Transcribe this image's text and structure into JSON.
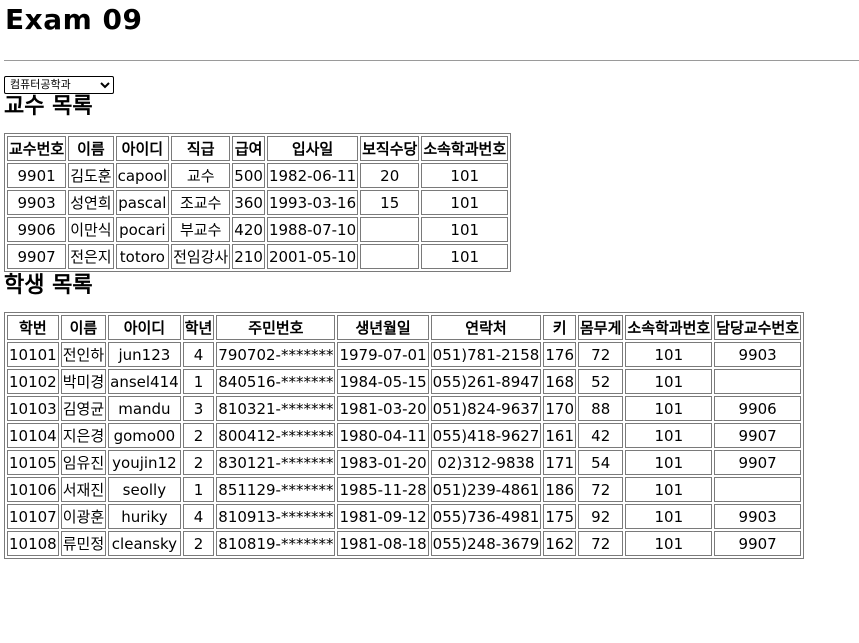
{
  "page": {
    "title": "Exam 09"
  },
  "department_select": {
    "selected": "컴퓨터공학과",
    "options": [
      "컴퓨터공학과"
    ]
  },
  "professors": {
    "title": "교수 목록",
    "headers": [
      "교수번호",
      "이름",
      "아이디",
      "직급",
      "급여",
      "입사일",
      "보직수당",
      "소속학과번호"
    ],
    "rows": [
      [
        "9901",
        "김도훈",
        "capool",
        "교수",
        "500",
        "1982-06-11",
        "20",
        "101"
      ],
      [
        "9903",
        "성연희",
        "pascal",
        "조교수",
        "360",
        "1993-03-16",
        "15",
        "101"
      ],
      [
        "9906",
        "이만식",
        "pocari",
        "부교수",
        "420",
        "1988-07-10",
        "",
        "101"
      ],
      [
        "9907",
        "전은지",
        "totoro",
        "전임강사",
        "210",
        "2001-05-10",
        "",
        "101"
      ]
    ]
  },
  "students": {
    "title": "학생 목록",
    "headers": [
      "학번",
      "이름",
      "아이디",
      "학년",
      "주민번호",
      "생년월일",
      "연락처",
      "키",
      "몸무게",
      "소속학과번호",
      "담당교수번호"
    ],
    "rows": [
      [
        "10101",
        "전인하",
        "jun123",
        "4",
        "790702-*******",
        "1979-07-01",
        "051)781-2158",
        "176",
        "72",
        "101",
        "9903"
      ],
      [
        "10102",
        "박미경",
        "ansel414",
        "1",
        "840516-*******",
        "1984-05-15",
        "055)261-8947",
        "168",
        "52",
        "101",
        ""
      ],
      [
        "10103",
        "김영균",
        "mandu",
        "3",
        "810321-*******",
        "1981-03-20",
        "051)824-9637",
        "170",
        "88",
        "101",
        "9906"
      ],
      [
        "10104",
        "지은경",
        "gomo00",
        "2",
        "800412-*******",
        "1980-04-11",
        "055)418-9627",
        "161",
        "42",
        "101",
        "9907"
      ],
      [
        "10105",
        "임유진",
        "youjin12",
        "2",
        "830121-*******",
        "1983-01-20",
        "02)312-9838",
        "171",
        "54",
        "101",
        "9907"
      ],
      [
        "10106",
        "서재진",
        "seolly",
        "1",
        "851129-*******",
        "1985-11-28",
        "051)239-4861",
        "186",
        "72",
        "101",
        ""
      ],
      [
        "10107",
        "이광훈",
        "huriky",
        "4",
        "810913-*******",
        "1981-09-12",
        "055)736-4981",
        "175",
        "92",
        "101",
        "9903"
      ],
      [
        "10108",
        "류민정",
        "cleansky",
        "2",
        "810819-*******",
        "1981-08-18",
        "055)248-3679",
        "162",
        "72",
        "101",
        "9907"
      ]
    ]
  }
}
